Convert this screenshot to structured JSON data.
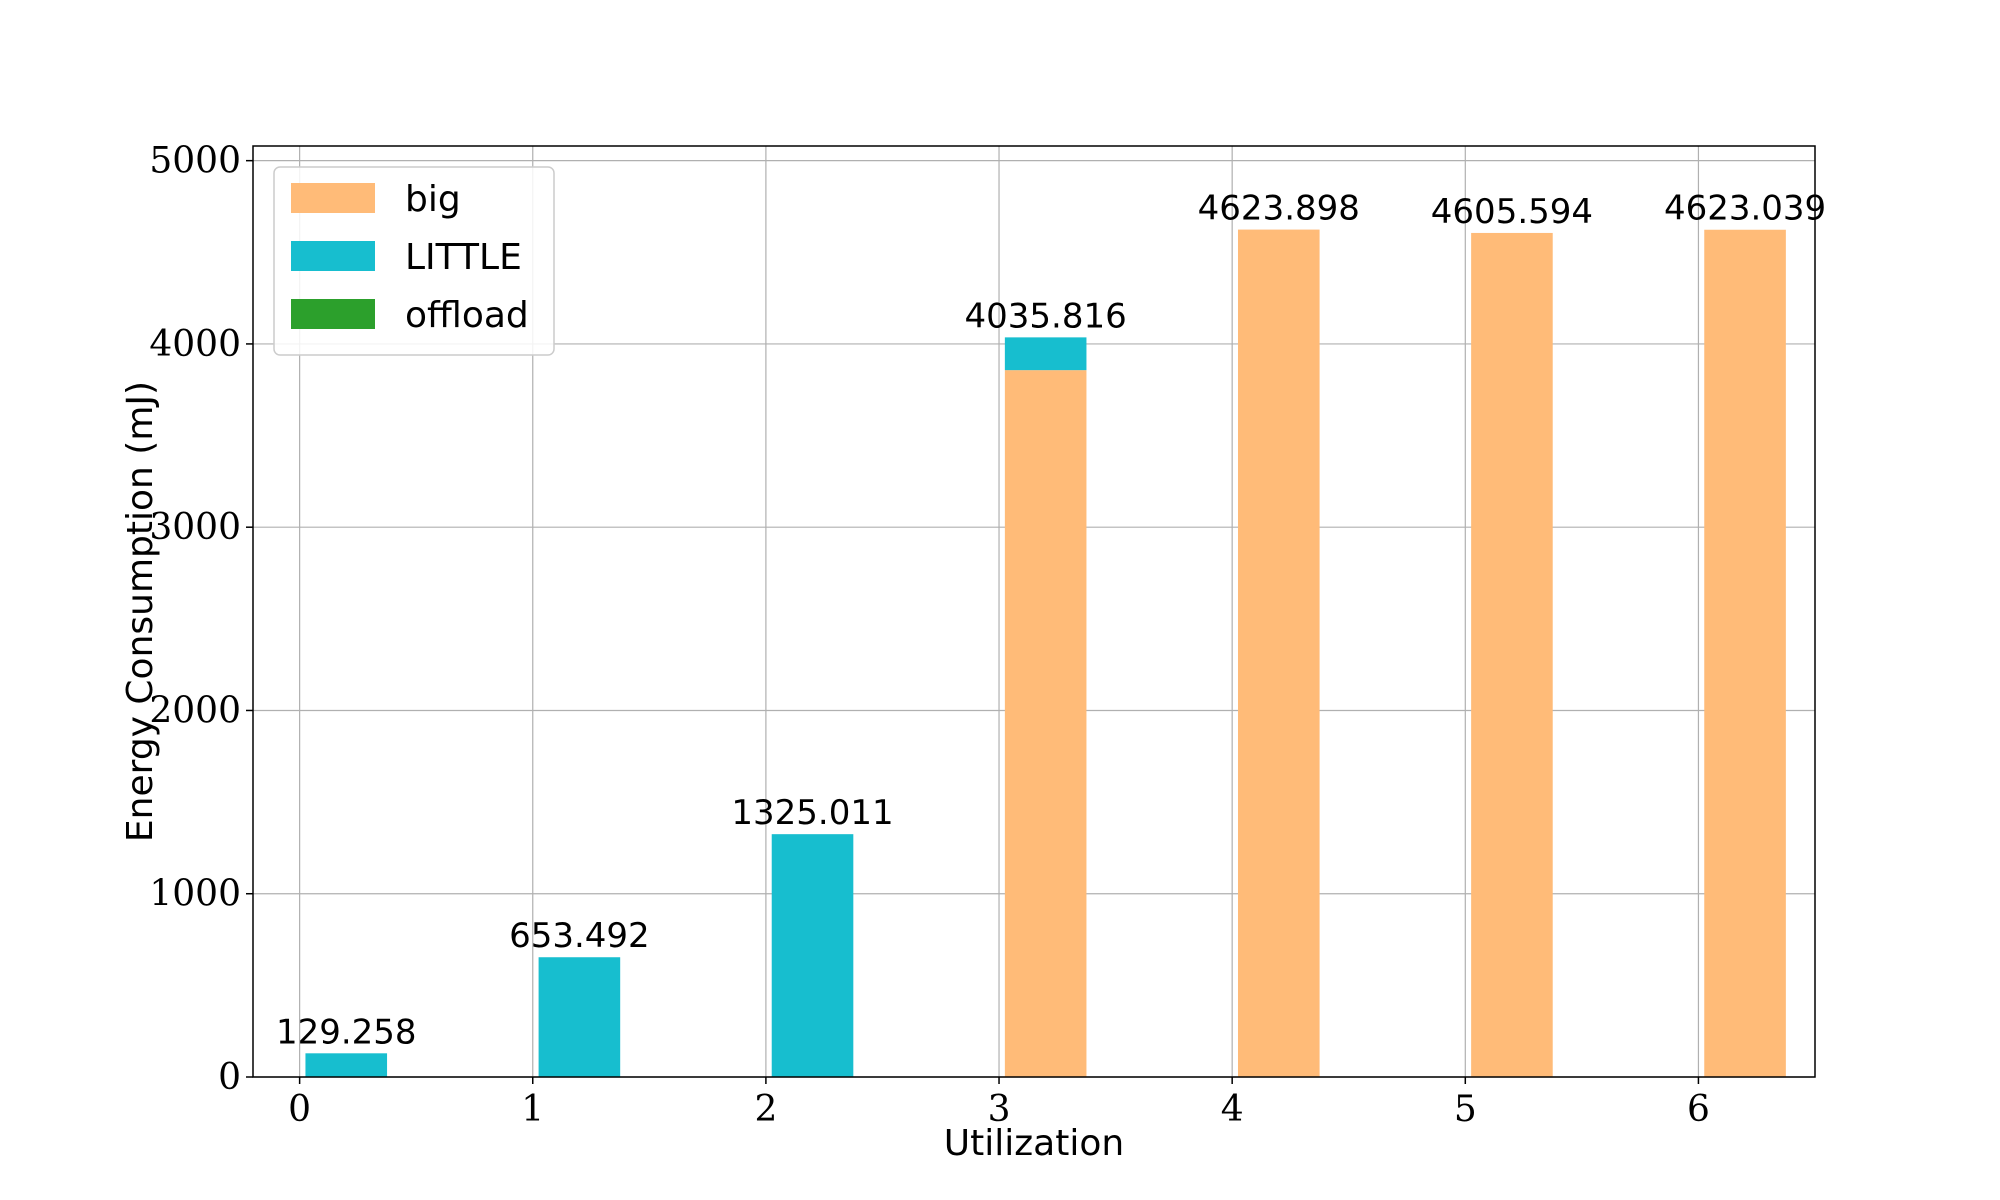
{
  "chart_data": {
    "type": "bar",
    "xlabel": "Utilization",
    "ylabel": "Energy Consumption (mJ)",
    "x_ticks": [
      "0",
      "1",
      "2",
      "3",
      "4",
      "5",
      "6"
    ],
    "y_ticks": [
      "0",
      "1000",
      "2000",
      "3000",
      "4000",
      "5000"
    ],
    "xlim": [
      -0.2,
      6.5
    ],
    "ylim": [
      0,
      5080
    ],
    "grid": true,
    "legend_position": "top-left",
    "bar_offset": 0.2,
    "bar_width": 0.35,
    "x": [
      0,
      1,
      2,
      3,
      4,
      5,
      6
    ],
    "series": [
      {
        "name": "big",
        "color": "#ffbb78",
        "values": [
          0,
          0,
          0,
          3857,
          4623.898,
          4605.594,
          4623.039
        ]
      },
      {
        "name": "LITTLE",
        "color": "#17becf",
        "values": [
          129.258,
          653.492,
          1325.011,
          178.816,
          0,
          0,
          0
        ]
      },
      {
        "name": "offload",
        "color": "#2ca02c",
        "values": [
          0,
          0,
          0,
          0,
          0,
          0,
          0
        ]
      }
    ],
    "totals": [
      "129.258",
      "653.492",
      "1325.011",
      "4035.816",
      "4623.898",
      "4605.594",
      "4623.039"
    ]
  }
}
